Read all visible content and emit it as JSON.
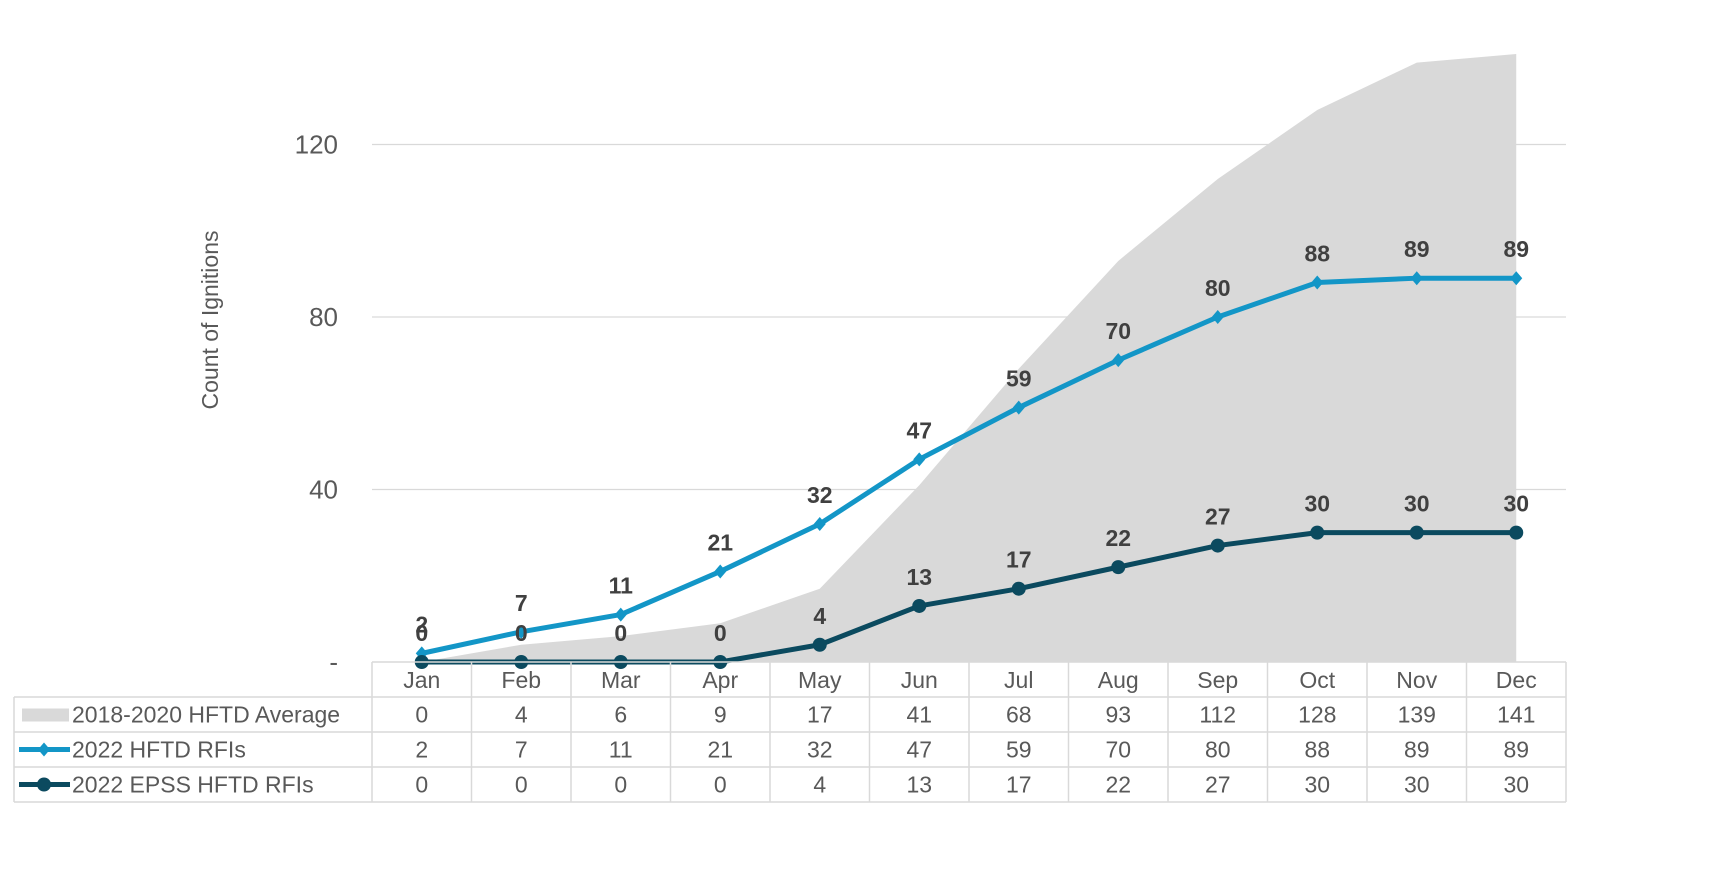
{
  "chart_data": {
    "type": "line",
    "ylabel": "Count of Ignitions",
    "yticks": [
      {
        "value": 0,
        "label": "-"
      },
      {
        "value": 40,
        "label": "40"
      },
      {
        "value": 80,
        "label": "80"
      },
      {
        "value": 120,
        "label": "120"
      }
    ],
    "ylim": [
      0,
      150
    ],
    "categories": [
      "Jan",
      "Feb",
      "Mar",
      "Apr",
      "May",
      "Jun",
      "Jul",
      "Aug",
      "Sep",
      "Oct",
      "Nov",
      "Dec"
    ],
    "grid": true,
    "legend": "data-table",
    "series": [
      {
        "name": "2018-2020 HFTD Average",
        "kind": "area",
        "color": "#d9d9d9",
        "values": [
          0,
          4,
          6,
          9,
          17,
          41,
          68,
          93,
          112,
          128,
          139,
          141
        ],
        "data_labels": false
      },
      {
        "name": "2022 HFTD RFIs",
        "kind": "line",
        "marker": "diamond",
        "color": "#1396c7",
        "values": [
          2,
          7,
          11,
          21,
          32,
          47,
          59,
          70,
          80,
          88,
          89,
          89
        ],
        "data_labels": true
      },
      {
        "name": "2022 EPSS HFTD RFIs",
        "kind": "line",
        "marker": "circle",
        "color": "#0b4a5f",
        "values": [
          0,
          0,
          0,
          0,
          4,
          13,
          17,
          22,
          27,
          30,
          30,
          30
        ],
        "data_labels": true
      }
    ]
  }
}
